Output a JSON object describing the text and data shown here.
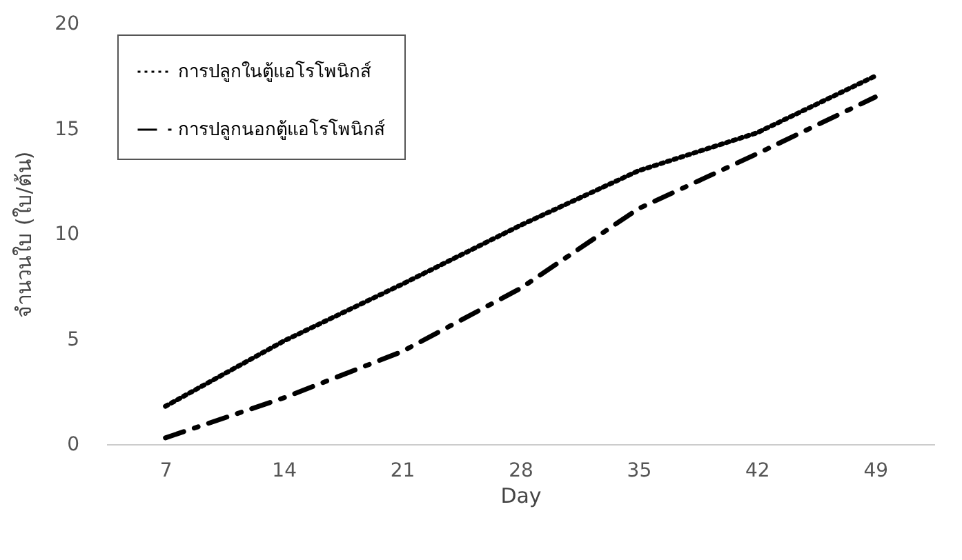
{
  "chart_data": {
    "type": "line",
    "xlabel": "Day",
    "ylabel": "จำนวนใบ (ใบ/ต้น)",
    "categories": [
      "7",
      "14",
      "21",
      "28",
      "35",
      "42",
      "49"
    ],
    "series": [
      {
        "name": "การปลูกในตู้แอโรโพนิกส์",
        "color": "#000000",
        "line_style": "dotted",
        "values": [
          1.8,
          4.9,
          7.6,
          10.4,
          13.0,
          14.8,
          17.5
        ]
      },
      {
        "name": "การปลูกนอกตู้แอโรโพนิกส์",
        "color": "#000000",
        "line_style": "dashed",
        "values": [
          0.3,
          2.2,
          4.4,
          7.4,
          11.2,
          13.8,
          16.5
        ]
      }
    ],
    "ylim": [
      0,
      20
    ],
    "yticks": [
      0,
      5,
      10,
      15,
      20
    ],
    "grid": false,
    "legend": "top left"
  }
}
